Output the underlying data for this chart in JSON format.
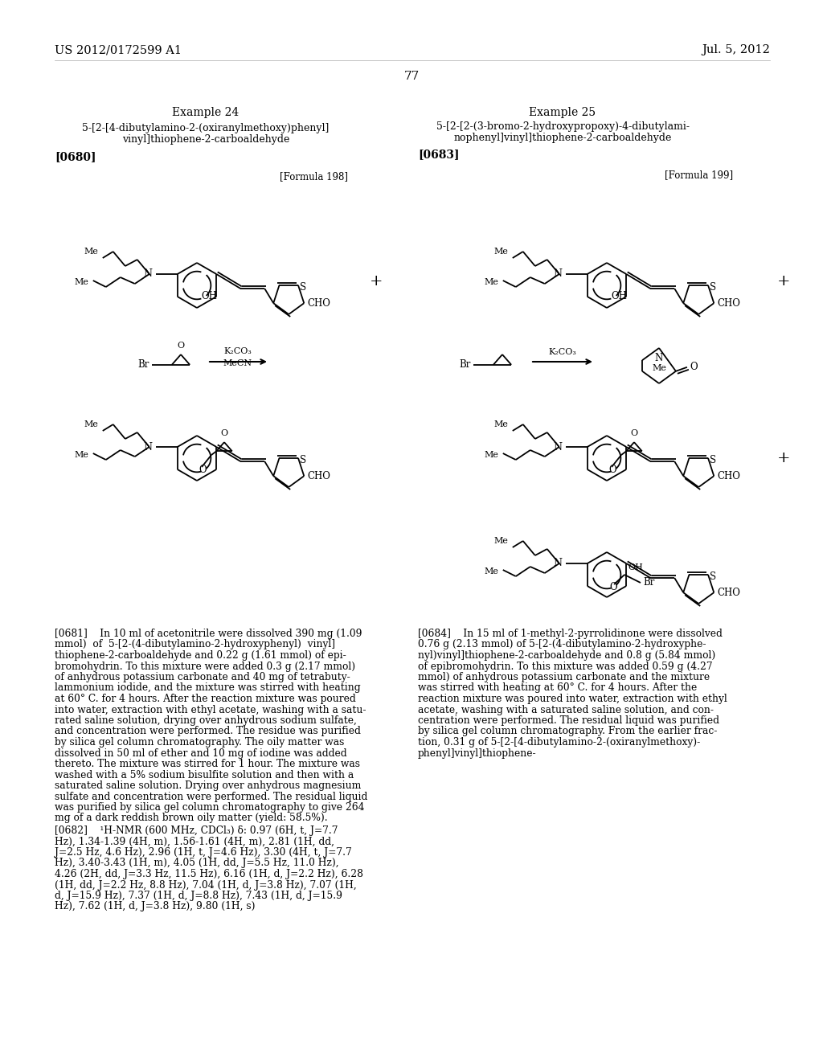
{
  "page_number": "77",
  "header_left": "US 2012/0172599 A1",
  "header_right": "Jul. 5, 2012",
  "background_color": "#ffffff",
  "text_color": "#000000",
  "example24_title": "Example 24",
  "example25_title": "Example 25",
  "example24_tag": "[0680]",
  "example25_tag": "[0683]",
  "formula198_tag": "[Formula 198]",
  "formula199_tag": "[Formula 199]",
  "para0681_lines": [
    "[0681]    In 10 ml of acetonitrile were dissolved 390 mg (1.09",
    "mmol)  of  5-[2-(4-dibutylamino-2-hydroxyphenyl)  vinyl]",
    "thiophene-2-carboaldehyde and 0.22 g (1.61 mmol) of epi-",
    "bromohydrin. To this mixture were added 0.3 g (2.17 mmol)",
    "of anhydrous potassium carbonate and 40 mg of tetrabuty-",
    "lammonium iodide, and the mixture was stirred with heating",
    "at 60° C. for 4 hours. After the reaction mixture was poured",
    "into water, extraction with ethyl acetate, washing with a satu-",
    "rated saline solution, drying over anhydrous sodium sulfate,",
    "and concentration were performed. The residue was purified",
    "by silica gel column chromatography. The oily matter was",
    "dissolved in 50 ml of ether and 10 mg of iodine was added",
    "thereto. The mixture was stirred for 1 hour. The mixture was",
    "washed with a 5% sodium bisulfite solution and then with a",
    "saturated saline solution. Drying over anhydrous magnesium",
    "sulfate and concentration were performed. The residual liquid",
    "was purified by silica gel column chromatography to give 264",
    "mg of a dark reddish brown oily matter (yield: 58.5%)."
  ],
  "para0682_lines": [
    "[0682]    ¹H-NMR (600 MHz, CDCl₃) δ: 0.97 (6H, t, J=7.7",
    "Hz), 1.34-1.39 (4H, m), 1.56-1.61 (4H, m), 2.81 (1H, dd,",
    "J=2.5 Hz, 4.6 Hz), 2.96 (1H, t, J=4.6 Hz), 3.30 (4H, t, J=7.7",
    "Hz), 3.40-3.43 (1H, m), 4.05 (1H, dd, J=5.5 Hz, 11.0 Hz),",
    "4.26 (2H, dd, J=3.3 Hz, 11.5 Hz), 6.16 (1H, d, J=2.2 Hz), 6.28",
    "(1H, dd, J=2.2 Hz, 8.8 Hz), 7.04 (1H, d, J=3.8 Hz), 7.07 (1H,",
    "d, J=15.9 Hz), 7.37 (1H, d, J=8.8 Hz), 7.43 (1H, d, J=15.9",
    "Hz), 7.62 (1H, d, J=3.8 Hz), 9.80 (1H, s)"
  ],
  "para0684_lines": [
    "[0684]    In 15 ml of 1-methyl-2-pyrrolidinone were dissolved",
    "0.76 g (2.13 mmol) of 5-[2-(4-dibutylamino-2-hydroxyphe-",
    "nyl)vinyl]thiophene-2-carboaldehyde and 0.8 g (5.84 mmol)",
    "of epibromohydrin. To this mixture was added 0.59 g (4.27",
    "mmol) of anhydrous potassium carbonate and the mixture",
    "was stirred with heating at 60° C. for 4 hours. After the",
    "reaction mixture was poured into water, extraction with ethyl",
    "acetate, washing with a saturated saline solution, and con-",
    "centration were performed. The residual liquid was purified",
    "by silica gel column chromatography. From the earlier frac-",
    "tion, 0.31 g of 5-[2-[4-dibutylamino-2-(oxiranylmethoxy)-",
    "phenyl]vinyl]thiophene-"
  ]
}
